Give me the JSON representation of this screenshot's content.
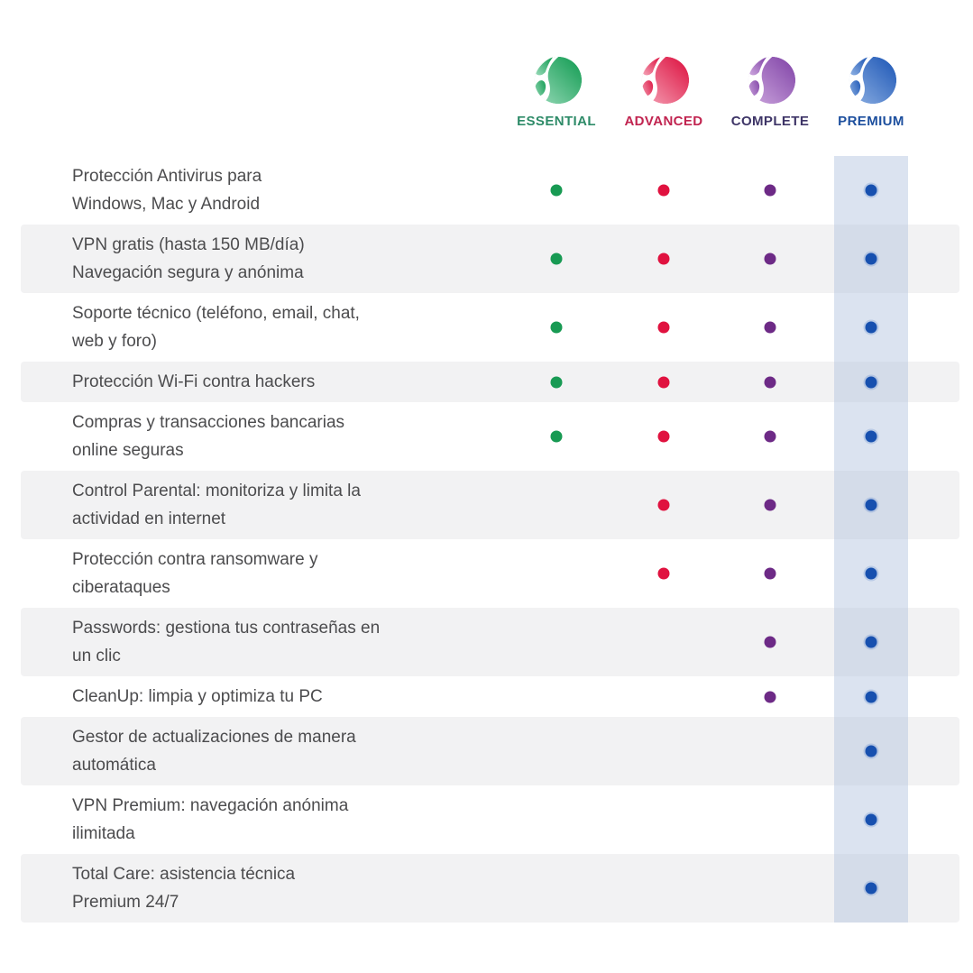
{
  "plans": [
    {
      "id": "essential",
      "label": "ESSENTIAL",
      "label_color": "#2e8b68",
      "dot_color": "#189a53",
      "logo_light": "#98dab8",
      "logo_dark": "#0f9a50",
      "highlighted": false
    },
    {
      "id": "advanced",
      "label": "ADVANCED",
      "label_color": "#c12450",
      "dot_color": "#e0123f",
      "logo_light": "#f5a3b7",
      "logo_dark": "#dc0e3d",
      "highlighted": false
    },
    {
      "id": "complete",
      "label": "COMPLETE",
      "label_color": "#3e3567",
      "dot_color": "#6d2a86",
      "logo_light": "#cda7de",
      "logo_dark": "#7f42a6",
      "highlighted": false
    },
    {
      "id": "premium",
      "label": "PREMIUM",
      "label_color": "#1d4f9e",
      "dot_color": "#1750af",
      "logo_light": "#8fb1e3",
      "logo_dark": "#1b55b5",
      "highlighted": true
    }
  ],
  "features": [
    {
      "lines": [
        "Protección Antivirus para",
        "Windows, Mac y Android"
      ],
      "included": [
        true,
        true,
        true,
        true
      ]
    },
    {
      "lines": [
        "VPN gratis (hasta 150 MB/día)",
        "Navegación segura y anónima"
      ],
      "included": [
        true,
        true,
        true,
        true
      ]
    },
    {
      "lines": [
        "Soporte técnico (teléfono, email, chat,",
        "web y foro)"
      ],
      "included": [
        true,
        true,
        true,
        true
      ]
    },
    {
      "lines": [
        "Protección Wi-Fi contra hackers"
      ],
      "included": [
        true,
        true,
        true,
        true
      ]
    },
    {
      "lines": [
        "Compras y transacciones bancarias",
        "online seguras"
      ],
      "included": [
        true,
        true,
        true,
        true
      ]
    },
    {
      "lines": [
        "Control Parental: monitoriza y limita la",
        "actividad en internet"
      ],
      "included": [
        false,
        true,
        true,
        true
      ]
    },
    {
      "lines": [
        "Protección contra ransomware y",
        "ciberataques"
      ],
      "included": [
        false,
        true,
        true,
        true
      ]
    },
    {
      "lines": [
        "Passwords: gestiona tus contraseñas en",
        "un clic"
      ],
      "included": [
        false,
        false,
        true,
        true
      ]
    },
    {
      "lines": [
        "CleanUp: limpia y optimiza tu PC"
      ],
      "included": [
        false,
        false,
        true,
        true
      ]
    },
    {
      "lines": [
        "Gestor de actualizaciones de manera",
        "automática"
      ],
      "included": [
        false,
        false,
        false,
        true
      ]
    },
    {
      "lines": [
        "VPN Premium: navegación anónima",
        "ilimitada"
      ],
      "included": [
        false,
        false,
        false,
        true
      ]
    },
    {
      "lines": [
        "Total Care: asistencia técnica",
        "Premium 24/7"
      ],
      "included": [
        false,
        false,
        false,
        true
      ]
    }
  ],
  "colors": {
    "stripe": "#f2f2f3",
    "band_on_white": "#dbe3f0",
    "band_on_stripe": "#d4dce9",
    "feature_text": "#4c4c4e"
  }
}
